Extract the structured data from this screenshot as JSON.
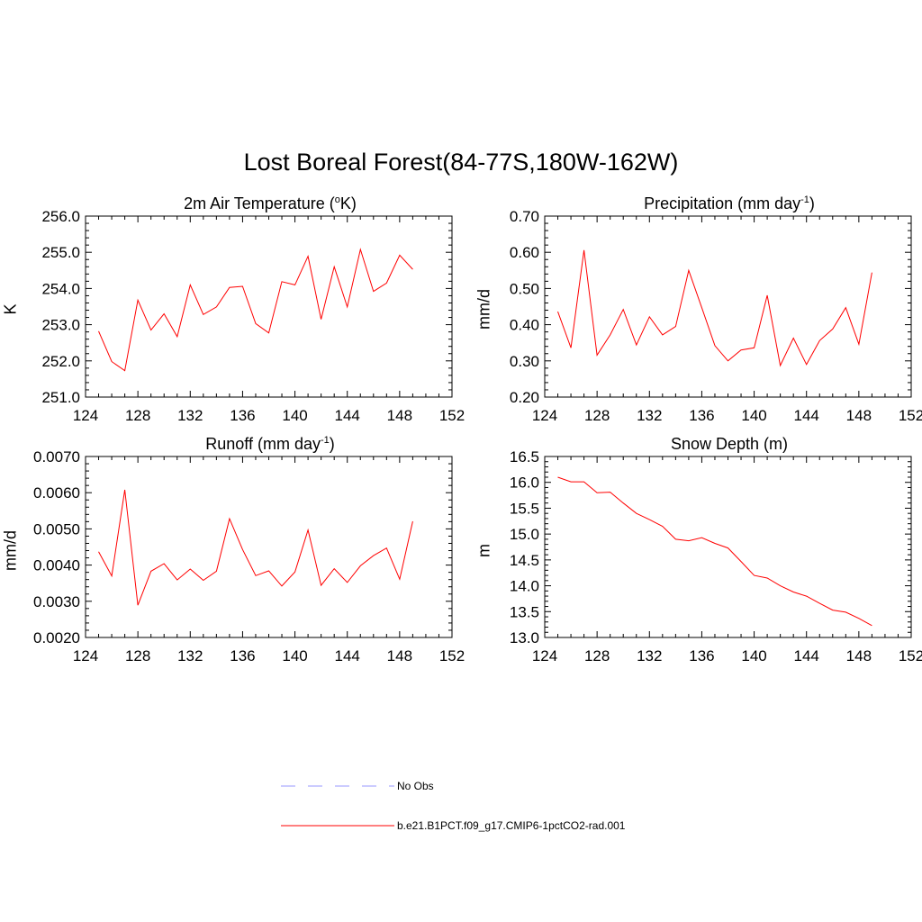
{
  "title": "Lost Boreal Forest(84-77S,180W-162W)",
  "colors": {
    "series": "#ff0000",
    "obs": "#9999ff",
    "axis": "#000000"
  },
  "legend": {
    "obs_label": "No Obs",
    "model_label": "b.e21.B1PCT.f09_g17.CMIP6-1pctCO2-rad.001"
  },
  "panels": {
    "temp": {
      "title_main": "2m Air Temperature (",
      "title_sup": "o",
      "title_tail": "K)",
      "ylabel": "K"
    },
    "precip": {
      "title_main": "Precipitation (mm day",
      "title_sup": "-1",
      "title_tail": ")",
      "ylabel": "mm/d"
    },
    "runoff": {
      "title_main": "Runoff (mm day",
      "title_sup": "-1",
      "title_tail": ")",
      "ylabel": "mm/d"
    },
    "snow": {
      "title_main": "Snow Depth (m)",
      "title_sup": "",
      "title_tail": "",
      "ylabel": "m"
    }
  },
  "chart_data": [
    {
      "type": "line",
      "id": "temp",
      "title": "2m Air Temperature (oK)",
      "ylabel": "K",
      "xlim": [
        124,
        152
      ],
      "ylim": [
        251.0,
        256.0
      ],
      "xticks": [
        124,
        128,
        132,
        136,
        140,
        144,
        148,
        152
      ],
      "yticks": [
        "251.0",
        "252.0",
        "253.0",
        "254.0",
        "255.0",
        "256.0"
      ],
      "x": [
        125,
        126,
        127,
        128,
        129,
        130,
        131,
        132,
        133,
        134,
        135,
        136,
        137,
        138,
        139,
        140,
        141,
        142,
        143,
        144,
        145,
        146,
        147,
        148,
        149
      ],
      "y": [
        252.82,
        251.98,
        251.73,
        253.68,
        252.85,
        253.3,
        252.67,
        254.1,
        253.28,
        253.49,
        254.03,
        254.06,
        253.03,
        252.77,
        254.19,
        254.1,
        254.89,
        253.15,
        254.6,
        253.49,
        255.08,
        253.92,
        254.15,
        254.92,
        254.53
      ]
    },
    {
      "type": "line",
      "id": "precip",
      "title": "Precipitation (mm day-1)",
      "ylabel": "mm/d",
      "xlim": [
        124,
        152
      ],
      "ylim": [
        0.2,
        0.7
      ],
      "xticks": [
        124,
        128,
        132,
        136,
        140,
        144,
        148,
        152
      ],
      "yticks": [
        "0.20",
        "0.30",
        "0.40",
        "0.50",
        "0.60",
        "0.70"
      ],
      "x": [
        125,
        126,
        127,
        128,
        129,
        130,
        131,
        132,
        133,
        134,
        135,
        136,
        137,
        138,
        139,
        140,
        141,
        142,
        143,
        144,
        145,
        146,
        147,
        148,
        149
      ],
      "y": [
        0.436,
        0.336,
        0.606,
        0.316,
        0.372,
        0.442,
        0.344,
        0.422,
        0.372,
        0.395,
        0.55,
        0.447,
        0.342,
        0.3,
        0.33,
        0.336,
        0.481,
        0.287,
        0.363,
        0.29,
        0.356,
        0.388,
        0.447,
        0.346,
        0.544
      ]
    },
    {
      "type": "line",
      "id": "runoff",
      "title": "Runoff (mm day-1)",
      "ylabel": "mm/d",
      "xlim": [
        124,
        152
      ],
      "ylim": [
        0.002,
        0.007
      ],
      "xticks": [
        124,
        128,
        132,
        136,
        140,
        144,
        148,
        152
      ],
      "yticks": [
        "0.0020",
        "0.0030",
        "0.0040",
        "0.0050",
        "0.0060",
        "0.0070"
      ],
      "x": [
        125,
        126,
        127,
        128,
        129,
        130,
        131,
        132,
        133,
        134,
        135,
        136,
        137,
        138,
        139,
        140,
        141,
        142,
        143,
        144,
        145,
        146,
        147,
        148,
        149
      ],
      "y": [
        0.00437,
        0.0037,
        0.00608,
        0.00289,
        0.00383,
        0.00404,
        0.00359,
        0.00389,
        0.00358,
        0.00383,
        0.00528,
        0.00443,
        0.00371,
        0.00384,
        0.00342,
        0.00381,
        0.00497,
        0.00344,
        0.0039,
        0.00352,
        0.00398,
        0.00426,
        0.00447,
        0.00361,
        0.00521
      ]
    },
    {
      "type": "line",
      "id": "snow",
      "title": "Snow Depth (m)",
      "ylabel": "m",
      "xlim": [
        124,
        152
      ],
      "ylim": [
        13.0,
        16.5
      ],
      "xticks": [
        124,
        128,
        132,
        136,
        140,
        144,
        148,
        152
      ],
      "yticks": [
        "13.0",
        "13.5",
        "14.0",
        "14.5",
        "15.0",
        "15.5",
        "16.0",
        "16.5"
      ],
      "x": [
        125,
        126,
        127,
        128,
        129,
        130,
        131,
        132,
        133,
        134,
        135,
        136,
        137,
        138,
        139,
        140,
        141,
        142,
        143,
        144,
        145,
        146,
        147,
        148,
        149
      ],
      "y": [
        16.1,
        16.01,
        16.01,
        15.8,
        15.81,
        15.6,
        15.4,
        15.28,
        15.15,
        14.9,
        14.87,
        14.93,
        14.82,
        14.73,
        14.47,
        14.2,
        14.15,
        14.0,
        13.88,
        13.8,
        13.66,
        13.53,
        13.49,
        13.37,
        13.23
      ]
    }
  ]
}
